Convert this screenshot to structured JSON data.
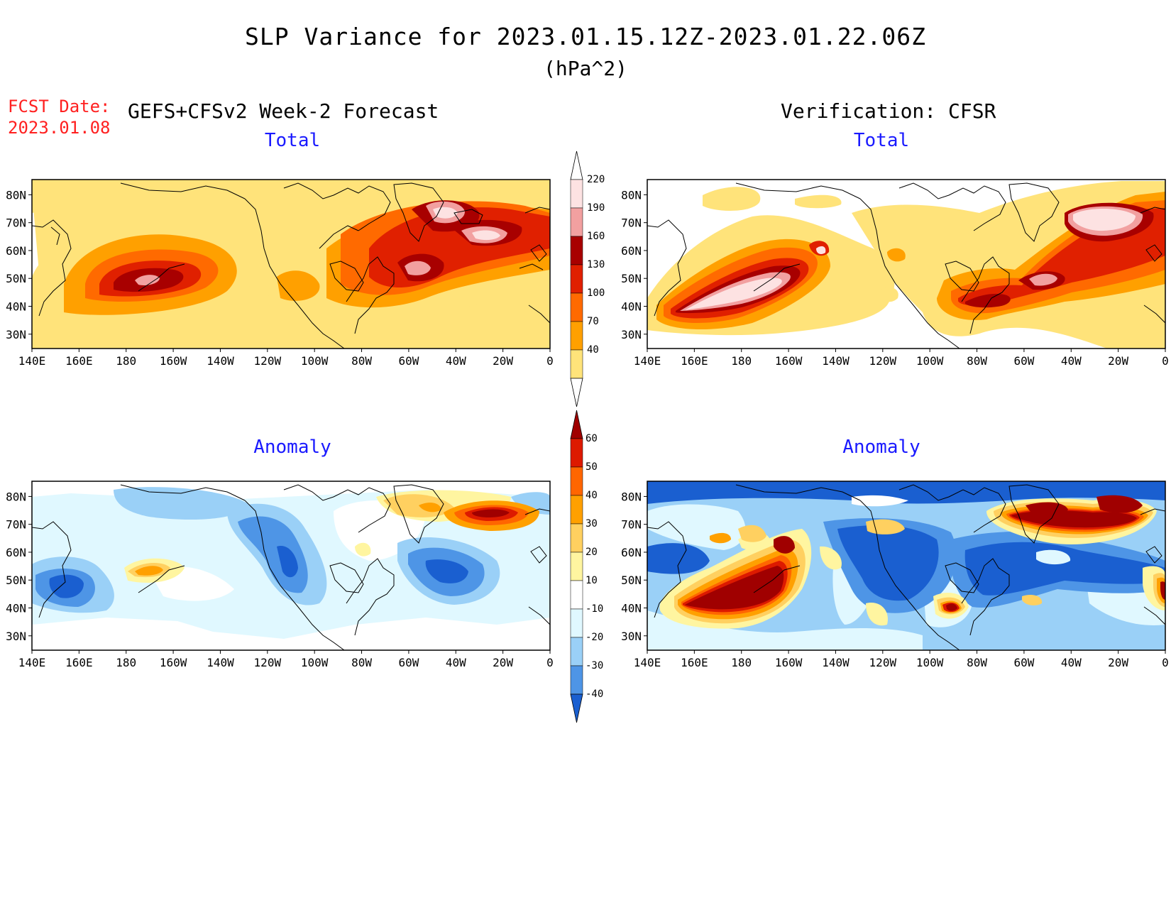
{
  "title": "SLP Variance for 2023.01.15.12Z-2023.01.22.06Z",
  "units": "(hPa^2)",
  "forecast": {
    "date_label": "FCST Date:",
    "date": "2023.01.08",
    "heading": "GEFS+CFSv2 Week-2 Forecast"
  },
  "verification": {
    "heading": "Verification: CFSR"
  },
  "panels": {
    "top_left": "Total",
    "top_right": "Total",
    "bottom_left": "Anomaly",
    "bottom_right": "Anomaly"
  },
  "lat_labels": [
    "80N",
    "70N",
    "60N",
    "50N",
    "40N",
    "30N"
  ],
  "lon_labels": [
    "140E",
    "160E",
    "180",
    "160W",
    "140W",
    "120W",
    "100W",
    "80W",
    "60W",
    "40W",
    "20W",
    "0"
  ],
  "total_colorbar": {
    "levels": [
      "220",
      "190",
      "160",
      "130",
      "100",
      "70",
      "40"
    ],
    "colors": [
      "#fde2e2",
      "#f2a0a0",
      "#a80000",
      "#e02000",
      "#ff6a00",
      "#ffa000",
      "#ffe37a"
    ]
  },
  "anomaly_colorbar": {
    "levels": [
      "60",
      "50",
      "40",
      "30",
      "20",
      "10",
      "-10",
      "-20",
      "-30",
      "-40"
    ],
    "colors": [
      "#a00000",
      "#dd1a00",
      "#ff6600",
      "#ffa000",
      "#ffd060",
      "#fff5a0",
      "#ffffff",
      "#e0f8ff",
      "#9ad0f7",
      "#4e95e6",
      "#1a5fd0"
    ]
  }
}
